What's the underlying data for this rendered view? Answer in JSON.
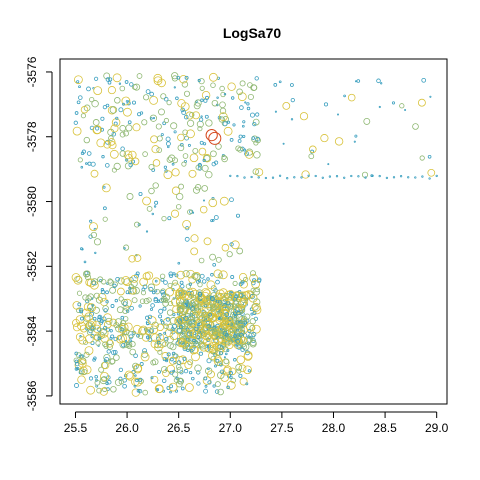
{
  "chart_data": {
    "type": "scatter",
    "title": "LogSa70",
    "xlabel": "",
    "ylabel": "",
    "xlim": [
      25.35,
      29.1
    ],
    "ylim": [
      -3586.25,
      -3575.6
    ],
    "x_ticks": [
      25.5,
      26.0,
      26.5,
      27.0,
      27.5,
      28.0,
      28.5,
      29.0
    ],
    "x_tick_labels": [
      "25.5",
      "26.0",
      "26.5",
      "27.0",
      "27.5",
      "28.0",
      "28.5",
      "29.0"
    ],
    "y_ticks": [
      -3576,
      -3578,
      -3580,
      -3582,
      -3584,
      -3586
    ],
    "y_tick_labels": [
      "-3576",
      "-3578",
      "-3580",
      "-3582",
      "-3584",
      "-3586"
    ],
    "grid": false,
    "legend": "none",
    "colors": {
      "low": "#3a9fbf",
      "mid": "#8fb873",
      "high": "#d8c23a",
      "max": "#d64a1f",
      "axis": "#000000"
    },
    "clusters": [
      {
        "x": [
          25.5,
          27.3
        ],
        "y": [
          -3576.1,
          -3579.2
        ],
        "n": 260,
        "bias": 0.35
      },
      {
        "x": [
          27.3,
          29.0
        ],
        "y": [
          -3576.0,
          -3579.3
        ],
        "n": 40,
        "bias": 0.0
      },
      {
        "x": [
          25.5,
          27.1
        ],
        "y": [
          -3579.5,
          -3582.0
        ],
        "n": 70,
        "bias": 0.25
      },
      {
        "x": [
          25.5,
          27.3
        ],
        "y": [
          -3582.2,
          -3584.5
        ],
        "n": 480,
        "bias": 0.55
      },
      {
        "x": [
          26.5,
          27.15
        ],
        "y": [
          -3582.8,
          -3584.6
        ],
        "n": 380,
        "bias": 0.8
      },
      {
        "x": [
          25.5,
          27.2
        ],
        "y": [
          -3584.6,
          -3585.9
        ],
        "n": 200,
        "bias": 0.45
      }
    ],
    "line_points": {
      "x": [
        27.0,
        29.0
      ],
      "y": -3579.25,
      "n": 30
    },
    "highlight_points": [
      {
        "x": 26.85,
        "y": -3578.05,
        "size": 1.0
      },
      {
        "x": 26.82,
        "y": -3577.95,
        "size": 0.85
      }
    ]
  }
}
